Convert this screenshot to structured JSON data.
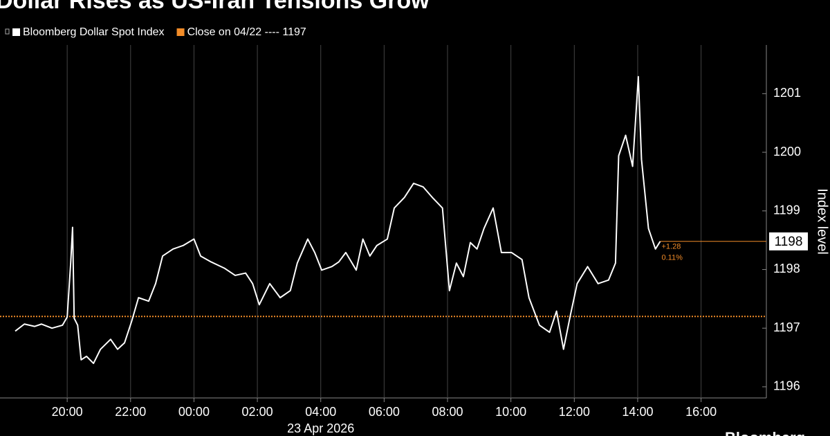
{
  "chart_data": {
    "type": "line",
    "title": "Dollar Rises as US-Iran Tensions Grow",
    "x_date_label": "23 Apr 2026",
    "y_axis_label": "Index level",
    "source": "Bloomberg",
    "last_value_label": "1198",
    "change_label": "+1.28",
    "change_pct_label": "0.11%",
    "reference_line": {
      "name": "Close on 04/22 ---- 1197",
      "value": 1197.2,
      "color": "#f28c28"
    },
    "x": [
      -5.64,
      -5.35,
      -5.03,
      -4.81,
      -4.48,
      -4.15,
      -4.0,
      -3.89,
      -3.83,
      -3.78,
      -3.67,
      -3.56,
      -3.39,
      -3.17,
      -2.95,
      -2.63,
      -2.41,
      -2.19,
      -1.97,
      -1.75,
      -1.43,
      -1.21,
      -0.99,
      -0.66,
      -0.34,
      0.0,
      0.21,
      0.54,
      0.97,
      1.3,
      1.63,
      1.85,
      2.06,
      2.39,
      2.72,
      3.04,
      3.26,
      3.59,
      3.81,
      4.03,
      4.35,
      4.57,
      4.79,
      5.12,
      5.33,
      5.55,
      5.77,
      6.1,
      6.32,
      6.64,
      6.93,
      7.23,
      7.52,
      7.84,
      8.06,
      8.28,
      8.5,
      8.72,
      8.93,
      9.15,
      9.44,
      9.7,
      10.02,
      10.35,
      10.57,
      10.9,
      11.22,
      11.44,
      11.66,
      11.88,
      12.09,
      12.42,
      12.75,
      13.08,
      13.3,
      13.4,
      13.62,
      13.84,
      14.02,
      14.12,
      14.34,
      14.56,
      14.71
    ],
    "series": [
      {
        "name": "Bloomberg Dollar Spot Index",
        "color": "#ffffff",
        "values": [
          1196.95,
          1197.07,
          1197.03,
          1197.07,
          1197.0,
          1197.05,
          1197.19,
          1198.11,
          1198.72,
          1197.17,
          1197.05,
          1196.46,
          1196.52,
          1196.4,
          1196.64,
          1196.81,
          1196.64,
          1196.75,
          1197.11,
          1197.52,
          1197.46,
          1197.76,
          1198.23,
          1198.35,
          1198.41,
          1198.52,
          1198.23,
          1198.13,
          1198.02,
          1197.9,
          1197.94,
          1197.76,
          1197.4,
          1197.76,
          1197.52,
          1197.64,
          1198.11,
          1198.52,
          1198.29,
          1197.99,
          1198.05,
          1198.13,
          1198.29,
          1197.99,
          1198.52,
          1198.23,
          1198.41,
          1198.52,
          1199.05,
          1199.23,
          1199.47,
          1199.41,
          1199.23,
          1199.05,
          1197.64,
          1198.11,
          1197.88,
          1198.46,
          1198.35,
          1198.7,
          1199.05,
          1198.29,
          1198.29,
          1198.17,
          1197.52,
          1197.05,
          1196.93,
          1197.29,
          1196.64,
          1197.23,
          1197.76,
          1198.05,
          1197.76,
          1197.82,
          1198.11,
          1199.94,
          1200.29,
          1199.76,
          1201.29,
          1199.88,
          1198.7,
          1198.35,
          1198.48
        ]
      }
    ],
    "xlim": [
      -6.12,
      18.06
    ],
    "xticks": [
      {
        "value": -4,
        "label": "20:00"
      },
      {
        "value": -2,
        "label": "22:00"
      },
      {
        "value": 0,
        "label": "00:00"
      },
      {
        "value": 2,
        "label": "02:00"
      },
      {
        "value": 4,
        "label": "04:00"
      },
      {
        "value": 6,
        "label": "06:00"
      },
      {
        "value": 8,
        "label": "08:00"
      },
      {
        "value": 10,
        "label": "10:00"
      },
      {
        "value": 12,
        "label": "12:00"
      },
      {
        "value": 14,
        "label": "14:00"
      },
      {
        "value": 16,
        "label": "16:00"
      }
    ],
    "ylim": [
      1195.81,
      1201.83
    ],
    "yticks": [
      1196,
      1197,
      1198,
      1199,
      1200,
      1201
    ],
    "x_grid": true,
    "y_axis_side": "right"
  }
}
